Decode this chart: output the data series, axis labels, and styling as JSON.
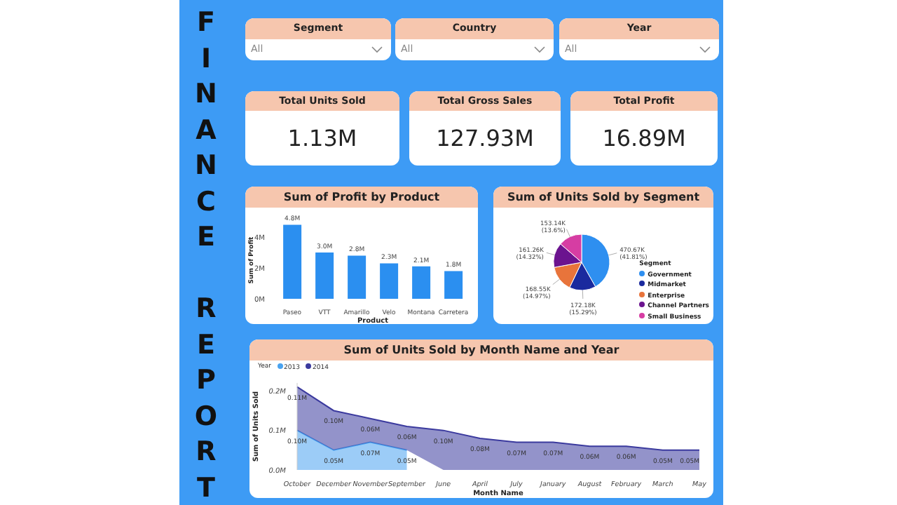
{
  "chart_data": [
    {
      "type": "other",
      "title": "FINANCE REPORT"
    },
    {
      "type": "other",
      "title": "Segment",
      "annotations": [
        "All"
      ]
    },
    {
      "type": "other",
      "title": "Country",
      "annotations": [
        "All"
      ]
    },
    {
      "type": "other",
      "title": "Year",
      "annotations": [
        "All"
      ]
    },
    {
      "type": "other",
      "title": "Total Units Sold",
      "annotations": [
        "1.13M"
      ]
    },
    {
      "type": "other",
      "title": "Total Gross Sales",
      "annotations": [
        "127.93M"
      ]
    },
    {
      "type": "other",
      "title": "Total Profit",
      "annotations": [
        "16.89M"
      ]
    },
    {
      "type": "bar",
      "title": "Sum of Profit by Product",
      "xlabel": "Product",
      "ylabel": "Sum of Profit",
      "categories": [
        "Paseo",
        "VTT",
        "Amarillo",
        "Velo",
        "Montana",
        "Carretera"
      ],
      "values": [
        4.8,
        3.0,
        2.8,
        2.3,
        2.1,
        1.8
      ],
      "value_labels": [
        "4.8M",
        "3.0M",
        "2.8M",
        "2.3M",
        "2.1M",
        "1.8M"
      ],
      "color": "#2b8ff0",
      "ylim": [
        0,
        5
      ],
      "yticks": [
        {
          "value": 0,
          "label": "0M"
        },
        {
          "value": 2,
          "label": "2M"
        },
        {
          "value": 4,
          "label": "4M"
        }
      ]
    },
    {
      "type": "pie",
      "title": "Sum of Units Sold by Segment",
      "legend_title": "Segment",
      "legend": "right",
      "categories": [
        "Government",
        "Midmarket",
        "Enterprise",
        "Channel Partners",
        "Small Business"
      ],
      "values": [
        470670,
        172180,
        168550,
        161260,
        153140
      ],
      "value_labels": [
        "470.67K (41.81%)",
        "172.18K (15.29%)",
        "168.55K (14.97%)",
        "161.26K (14.32%)",
        "153.14K (13.6%)"
      ],
      "colors": [
        "#2e8ff0",
        "#1a2a9e",
        "#e8743b",
        "#6b138f",
        "#d63da3"
      ]
    },
    {
      "type": "area",
      "title": "Sum of Units Sold by Month Name and Year",
      "xlabel": "Month Name",
      "ylabel": "Sum of Units Sold",
      "legend_title": "Year",
      "legend": "top left",
      "stacked": true,
      "categories": [
        "October",
        "December",
        "November",
        "September",
        "June",
        "April",
        "July",
        "January",
        "August",
        "February",
        "March",
        "May"
      ],
      "series": [
        {
          "name": "2013",
          "color": "#4aa3f0",
          "values": [
            0.1,
            0.05,
            0.07,
            0.05,
            null,
            null,
            null,
            null,
            null,
            null,
            null,
            null
          ],
          "value_labels": [
            "0.10M",
            "0.05M",
            "0.07M",
            "0.05M",
            null,
            null,
            null,
            null,
            null,
            null,
            null,
            null
          ]
        },
        {
          "name": "2014",
          "color": "#3b3a9e",
          "values": [
            0.11,
            0.1,
            0.06,
            0.06,
            0.1,
            0.08,
            0.07,
            0.07,
            0.06,
            0.06,
            0.05,
            0.05
          ],
          "value_labels": [
            "0.11M",
            "0.10M",
            "0.06M",
            "0.06M",
            "0.10M",
            "0.08M",
            "0.07M",
            "0.07M",
            "0.06M",
            "0.06M",
            "0.05M",
            "0.05M"
          ]
        }
      ],
      "ylim": [
        0,
        0.22
      ],
      "yticks": [
        {
          "value": 0,
          "label": "0.0M"
        },
        {
          "value": 0.1,
          "label": "0.1M"
        },
        {
          "value": 0.2,
          "label": "0.2M"
        }
      ]
    }
  ]
}
